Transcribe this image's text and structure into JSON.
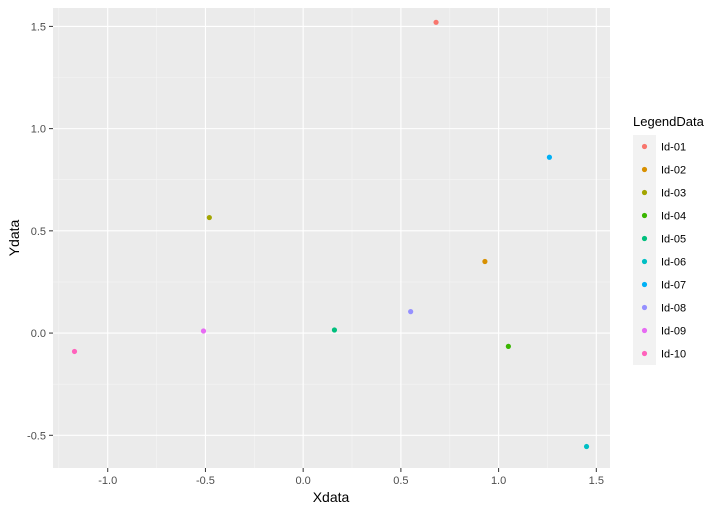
{
  "chart_data": {
    "type": "scatter",
    "xlabel": "Xdata",
    "ylabel": "Ydata",
    "xlim": [
      -1.28,
      1.57
    ],
    "ylim": [
      -0.66,
      1.59
    ],
    "x_ticks": [
      -1.0,
      -0.5,
      0.0,
      0.5,
      1.0,
      1.5
    ],
    "x_tick_labels": [
      "-1.0",
      "-0.5",
      "0.0",
      "0.5",
      "1.0",
      "1.5"
    ],
    "y_ticks": [
      -0.5,
      0.0,
      0.5,
      1.0,
      1.5
    ],
    "y_tick_labels": [
      "-0.5",
      "0.0",
      "0.5",
      "1.0",
      "1.5"
    ],
    "grid": true,
    "legend": {
      "title": "LegendData",
      "placement": "right"
    },
    "series": [
      {
        "name": "Id-01",
        "color": "#F8766D",
        "x": 0.68,
        "y": 1.52
      },
      {
        "name": "Id-02",
        "color": "#D89000",
        "x": 0.93,
        "y": 0.35
      },
      {
        "name": "Id-03",
        "color": "#A3A500",
        "x": -0.48,
        "y": 0.565
      },
      {
        "name": "Id-04",
        "color": "#39B600",
        "x": 1.05,
        "y": -0.065
      },
      {
        "name": "Id-05",
        "color": "#00BF7D",
        "x": 0.16,
        "y": 0.015
      },
      {
        "name": "Id-06",
        "color": "#00BFC4",
        "x": 1.45,
        "y": -0.555
      },
      {
        "name": "Id-07",
        "color": "#00B0F6",
        "x": 1.26,
        "y": 0.86
      },
      {
        "name": "Id-08",
        "color": "#9590FF",
        "x": 0.55,
        "y": 0.105
      },
      {
        "name": "Id-09",
        "color": "#E76BF3",
        "x": -0.51,
        "y": 0.01
      },
      {
        "name": "Id-10",
        "color": "#FF62BC",
        "x": -1.17,
        "y": -0.09
      }
    ]
  }
}
